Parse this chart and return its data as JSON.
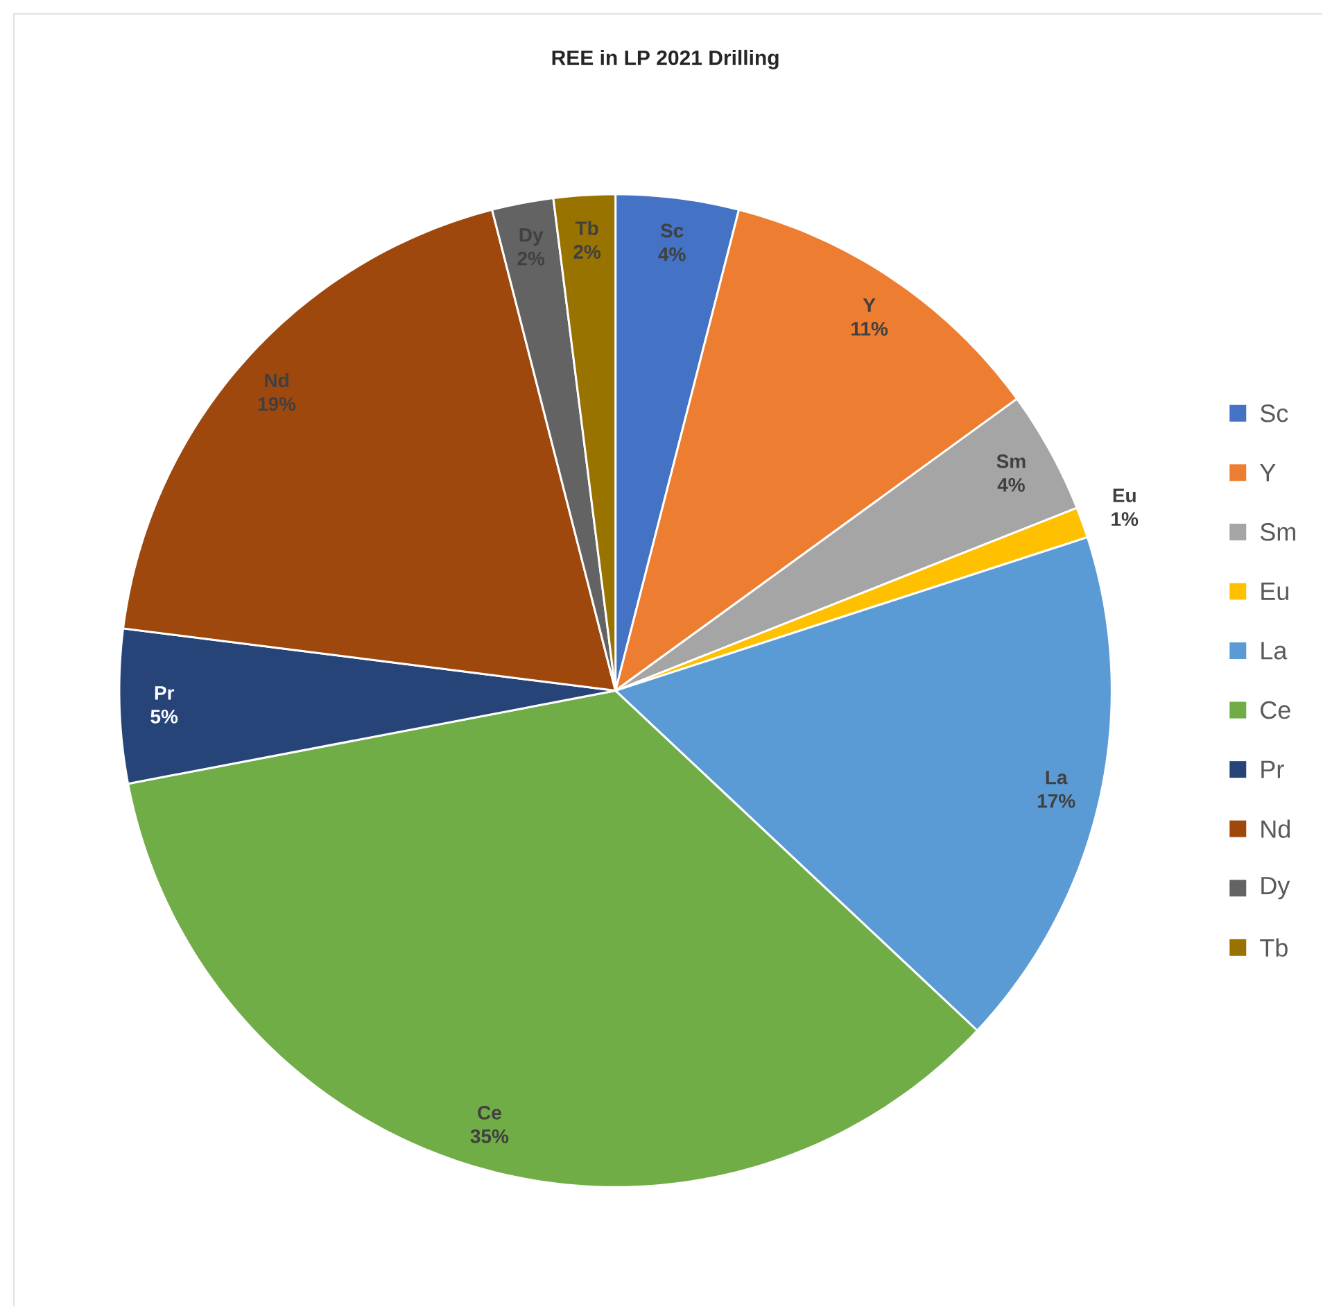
{
  "chart_data": {
    "type": "pie",
    "title": "REE in LP 2021 Drilling",
    "categories": [
      "Sc",
      "Y",
      "Sm",
      "Eu",
      "La",
      "Ce",
      "Pr",
      "Nd",
      "Dy",
      "Tb"
    ],
    "values": [
      4,
      11,
      4,
      1,
      17,
      35,
      5,
      19,
      2,
      2
    ],
    "value_labels": [
      "4%",
      "11%",
      "4%",
      "1%",
      "17%",
      "35%",
      "5%",
      "19%",
      "2%",
      "2%"
    ],
    "colors": [
      "#4472c4",
      "#ed7d31",
      "#a5a5a5",
      "#ffc000",
      "#5b9bd5",
      "#70ad47",
      "#264478",
      "#9e480e",
      "#636363",
      "#997300"
    ],
    "legend": "right"
  }
}
